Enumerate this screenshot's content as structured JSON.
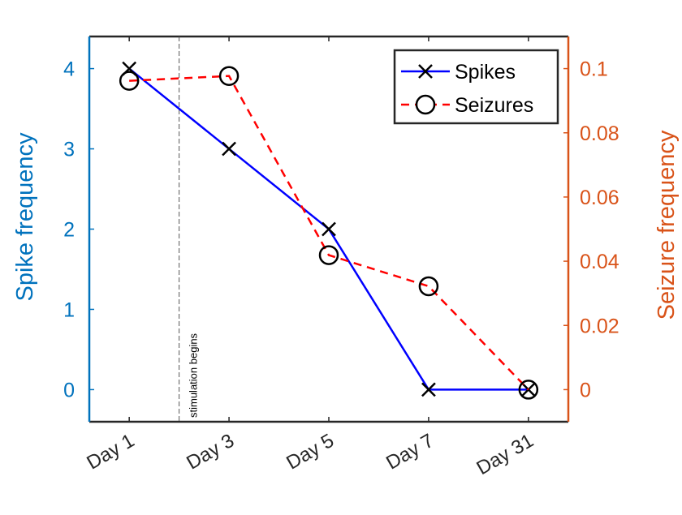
{
  "chart_data": {
    "type": "line",
    "categories": [
      "Day 1",
      "Day 3",
      "Day 5",
      "Day 7",
      "Day 31"
    ],
    "series": [
      {
        "name": "Spikes",
        "axis": "left",
        "values": [
          4,
          3,
          2,
          0,
          0
        ],
        "color": "#0000FF",
        "marker": "x",
        "line": "solid"
      },
      {
        "name": "Seizures",
        "axis": "right",
        "values": [
          0.0962,
          0.0977,
          0.0419,
          0.0322,
          0
        ],
        "color": "#FF0000",
        "marker": "o",
        "line": "dashed"
      }
    ],
    "ylabel": "Spike frequency",
    "ylabel_right": "Seizure frequency",
    "ylim": [
      -0.4,
      4.4
    ],
    "ylim_right": [
      -0.01,
      0.11
    ],
    "yticks": [
      0,
      1,
      2,
      3,
      4
    ],
    "yticks_right": [
      "0",
      "0.02",
      "0.04",
      "0.06",
      "0.08",
      "0.1"
    ],
    "yticks_right_values": [
      0,
      0.02,
      0.04,
      0.06,
      0.08,
      0.1
    ],
    "xlim_index": [
      0.6,
      5.4
    ],
    "left_axis_color": "#0072BD",
    "right_axis_color": "#D95319",
    "legend_position": "top-right",
    "annotation": {
      "text": "stimulation begins",
      "x_index": 1.5
    },
    "grid": false
  }
}
